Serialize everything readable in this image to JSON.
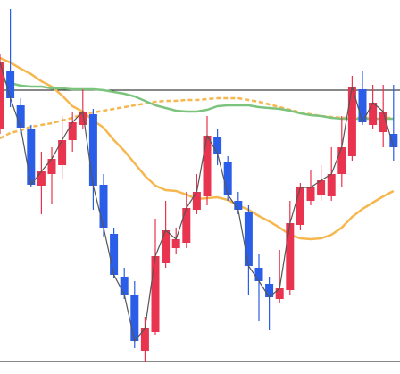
{
  "chart_data": {
    "type": "candlestick",
    "open": [
      274,
      339,
      301,
      274,
      211,
      224,
      234,
      262,
      279,
      291,
      212,
      157,
      109,
      89,
      26,
      47,
      124,
      141,
      147,
      184,
      199,
      266,
      237,
      194,
      182,
      119,
      101,
      84,
      94,
      167,
      194,
      201,
      199,
      224,
      244,
      319,
      279,
      271,
      269
    ],
    "high": [
      359,
      409,
      309,
      279,
      249,
      254,
      289,
      294,
      319,
      297,
      224,
      164,
      119,
      104,
      64,
      174,
      194,
      164,
      204,
      224,
      289,
      274,
      244,
      204,
      189,
      134,
      109,
      139,
      194,
      214,
      229,
      234,
      254,
      289,
      334,
      339,
      324,
      324,
      324
    ],
    "low": [
      269,
      299,
      269,
      209,
      179,
      191,
      219,
      249,
      274,
      184,
      154,
      107,
      84,
      29,
      14,
      44,
      119,
      134,
      141,
      179,
      189,
      234,
      194,
      179,
      89,
      59,
      49,
      79,
      89,
      161,
      189,
      194,
      194,
      209,
      239,
      279,
      274,
      254,
      239
    ],
    "close": [
      349,
      309,
      276,
      212,
      227,
      241,
      262,
      282,
      294,
      211,
      164,
      111,
      89,
      37,
      51,
      132,
      161,
      151,
      186,
      204,
      267,
      247,
      201,
      184,
      121,
      104,
      86,
      96,
      169,
      209,
      209,
      217,
      224,
      254,
      322,
      282,
      304,
      294,
      254
    ],
    "up_color": "#e8344e",
    "down_color": "#2a5ee8",
    "close_line_color": "#555555",
    "lines": [
      {
        "color": "#f5b74e",
        "dashed": false,
        "values": [
          354,
          349,
          342,
          336,
          328,
          322,
          312,
          300,
          294,
          284,
          276,
          262,
          250,
          236,
          222,
          211,
          206,
          205,
          201,
          196,
          197,
          198,
          195,
          189,
          184,
          177,
          171,
          164,
          156,
          152,
          151,
          152,
          156,
          164,
          176,
          185,
          192,
          199,
          205
        ]
      },
      {
        "color": "#f5b74e",
        "dashed": true,
        "values": [
          264,
          270,
          273,
          277,
          279,
          281,
          284,
          287,
          291,
          293,
          295,
          297,
          299,
          301,
          303,
          305,
          306,
          306,
          307,
          307,
          308,
          309,
          309,
          309,
          307,
          305,
          302,
          299,
          296,
          293,
          291,
          289,
          288,
          287,
          287,
          287,
          287,
          287,
          287
        ]
      },
      {
        "color": "#7cc47e",
        "dashed": false,
        "values": [
          329,
          326,
          323,
          322,
          322,
          320,
          320,
          319,
          319,
          319,
          318,
          316,
          314,
          311,
          306,
          301,
          298,
          295,
          294,
          294,
          296,
          300,
          301,
          301,
          301,
          299,
          298,
          297,
          295,
          292,
          290,
          289,
          287,
          286,
          286,
          286,
          286,
          286,
          286
        ]
      }
    ],
    "hlines": [
      318,
      14
    ],
    "ylim": [
      0,
      419
    ]
  }
}
